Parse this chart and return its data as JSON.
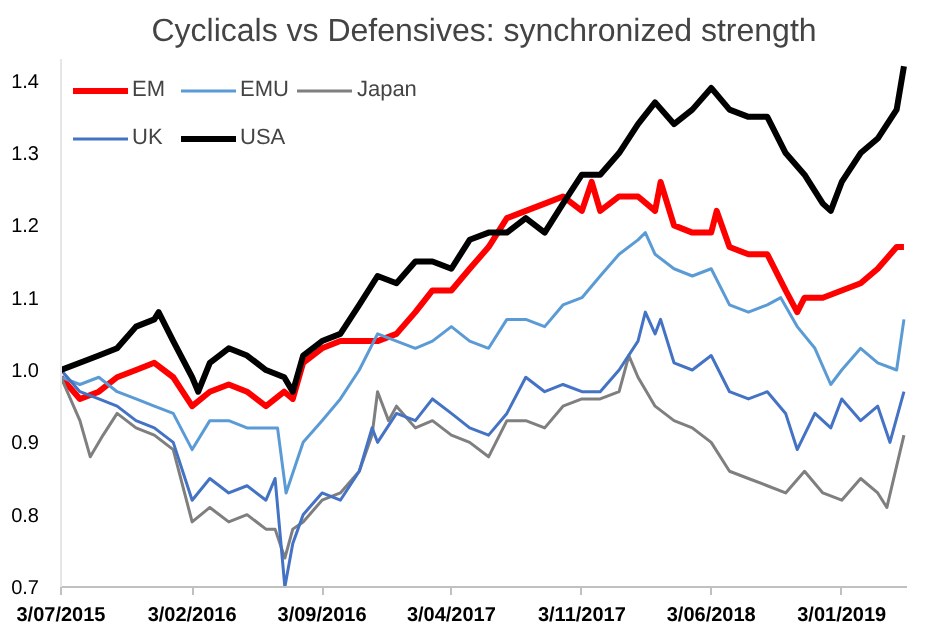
{
  "chart_data": {
    "type": "line",
    "title": "Cyclicals vs Defensives: synchronized strength",
    "xlim": [
      "2015-07-03",
      "2019-04-20"
    ],
    "ylim": [
      0.7,
      1.43
    ],
    "xticks": [
      {
        "value": "2015-07-03",
        "label": "3/07/2015"
      },
      {
        "value": "2016-02-03",
        "label": "3/02/2016"
      },
      {
        "value": "2016-09-03",
        "label": "3/09/2016"
      },
      {
        "value": "2017-04-03",
        "label": "3/04/2017"
      },
      {
        "value": "2017-11-03",
        "label": "3/11/2017"
      },
      {
        "value": "2018-06-03",
        "label": "3/06/2018"
      },
      {
        "value": "2019-01-03",
        "label": "3/01/2019"
      }
    ],
    "yticks": [
      0.7,
      0.8,
      0.9,
      {
        "value": 1.0,
        "label": "1.0"
      },
      1.1,
      1.2,
      1.3,
      1.4
    ],
    "grid": false,
    "legend": "top left",
    "line_style": "solid",
    "marker": "none",
    "series": [
      {
        "name": "EM",
        "color": "#ff0000",
        "x": [
          "2015-07-03",
          "2015-08-03",
          "2015-09-03",
          "2015-10-03",
          "2015-11-03",
          "2015-12-03",
          "2016-01-03",
          "2016-02-03",
          "2016-03-03",
          "2016-04-03",
          "2016-05-03",
          "2016-06-03",
          "2016-07-03",
          "2016-07-17",
          "2016-08-03",
          "2016-09-03",
          "2016-10-03",
          "2016-11-03",
          "2016-12-03",
          "2017-01-03",
          "2017-02-03",
          "2017-03-03",
          "2017-04-03",
          "2017-05-03",
          "2017-06-03",
          "2017-07-03",
          "2017-08-03",
          "2017-09-03",
          "2017-10-03",
          "2017-11-03",
          "2017-11-19",
          "2017-12-03",
          "2018-01-03",
          "2018-02-03",
          "2018-03-03",
          "2018-03-12",
          "2018-04-03",
          "2018-05-03",
          "2018-06-03",
          "2018-06-12",
          "2018-07-03",
          "2018-08-03",
          "2018-09-03",
          "2018-10-03",
          "2018-10-22",
          "2018-11-03",
          "2018-12-03",
          "2019-01-03",
          "2019-02-03",
          "2019-03-03",
          "2019-04-03",
          "2019-04-15"
        ],
        "values": [
          0.99,
          0.96,
          0.97,
          0.99,
          1.0,
          1.01,
          0.99,
          0.95,
          0.97,
          0.98,
          0.97,
          0.95,
          0.97,
          0.96,
          1.01,
          1.03,
          1.04,
          1.04,
          1.04,
          1.05,
          1.08,
          1.11,
          1.11,
          1.14,
          1.17,
          1.21,
          1.22,
          1.23,
          1.24,
          1.22,
          1.26,
          1.22,
          1.24,
          1.24,
          1.22,
          1.26,
          1.2,
          1.19,
          1.19,
          1.22,
          1.17,
          1.16,
          1.16,
          1.11,
          1.08,
          1.1,
          1.1,
          1.11,
          1.12,
          1.14,
          1.17,
          1.17
        ]
      },
      {
        "name": "EMU",
        "color": "#5b9bd5",
        "x": [
          "2015-07-03",
          "2015-08-03",
          "2015-09-03",
          "2015-10-03",
          "2015-11-03",
          "2015-12-03",
          "2016-01-03",
          "2016-02-03",
          "2016-03-03",
          "2016-04-03",
          "2016-05-03",
          "2016-06-03",
          "2016-06-22",
          "2016-07-06",
          "2016-08-03",
          "2016-09-03",
          "2016-10-03",
          "2016-11-03",
          "2016-12-03",
          "2017-01-03",
          "2017-02-03",
          "2017-03-03",
          "2017-04-03",
          "2017-05-03",
          "2017-06-03",
          "2017-07-03",
          "2017-08-03",
          "2017-09-03",
          "2017-10-03",
          "2017-11-03",
          "2017-12-03",
          "2018-01-03",
          "2018-02-03",
          "2018-02-15",
          "2018-03-03",
          "2018-04-03",
          "2018-05-03",
          "2018-06-03",
          "2018-07-03",
          "2018-08-03",
          "2018-09-03",
          "2018-09-25",
          "2018-10-22",
          "2018-11-20",
          "2018-12-16",
          "2019-01-03",
          "2019-02-03",
          "2019-03-03",
          "2019-04-03",
          "2019-04-15"
        ],
        "values": [
          0.99,
          0.98,
          0.99,
          0.97,
          0.96,
          0.95,
          0.94,
          0.89,
          0.93,
          0.93,
          0.92,
          0.92,
          0.92,
          0.83,
          0.9,
          0.93,
          0.96,
          1.0,
          1.05,
          1.04,
          1.03,
          1.04,
          1.06,
          1.04,
          1.03,
          1.07,
          1.07,
          1.06,
          1.09,
          1.1,
          1.13,
          1.16,
          1.18,
          1.19,
          1.16,
          1.14,
          1.13,
          1.14,
          1.09,
          1.08,
          1.09,
          1.1,
          1.06,
          1.03,
          0.98,
          1.0,
          1.03,
          1.01,
          1.0,
          1.07
        ]
      },
      {
        "name": "Japan",
        "color": "#7f7f7f",
        "x": [
          "2015-07-03",
          "2015-08-03",
          "2015-08-20",
          "2015-09-10",
          "2015-10-03",
          "2015-11-03",
          "2015-12-03",
          "2016-01-03",
          "2016-02-03",
          "2016-03-03",
          "2016-04-03",
          "2016-05-03",
          "2016-06-03",
          "2016-06-18",
          "2016-07-04",
          "2016-07-17",
          "2016-08-03",
          "2016-09-03",
          "2016-10-03",
          "2016-11-03",
          "2016-11-24",
          "2016-12-03",
          "2016-12-21",
          "2017-01-03",
          "2017-02-03",
          "2017-03-03",
          "2017-04-03",
          "2017-05-03",
          "2017-06-03",
          "2017-07-03",
          "2017-08-03",
          "2017-09-03",
          "2017-10-03",
          "2017-11-03",
          "2017-12-03",
          "2018-01-03",
          "2018-01-19",
          "2018-02-03",
          "2018-03-03",
          "2018-04-03",
          "2018-05-03",
          "2018-06-03",
          "2018-07-03",
          "2018-08-03",
          "2018-09-03",
          "2018-10-03",
          "2018-11-03",
          "2018-12-03",
          "2019-01-03",
          "2019-02-03",
          "2019-03-03",
          "2019-03-18",
          "2019-04-15"
        ],
        "values": [
          0.99,
          0.93,
          0.88,
          0.91,
          0.94,
          0.92,
          0.91,
          0.89,
          0.79,
          0.81,
          0.79,
          0.8,
          0.78,
          0.78,
          0.74,
          0.78,
          0.79,
          0.82,
          0.83,
          0.86,
          0.91,
          0.97,
          0.93,
          0.95,
          0.92,
          0.93,
          0.91,
          0.9,
          0.88,
          0.93,
          0.93,
          0.92,
          0.95,
          0.96,
          0.96,
          0.97,
          1.02,
          0.99,
          0.95,
          0.93,
          0.92,
          0.9,
          0.86,
          0.85,
          0.84,
          0.83,
          0.86,
          0.83,
          0.82,
          0.85,
          0.83,
          0.81,
          0.91
        ]
      },
      {
        "name": "UK",
        "color": "#4472c4",
        "x": [
          "2015-07-03",
          "2015-08-03",
          "2015-09-03",
          "2015-10-03",
          "2015-11-03",
          "2015-12-03",
          "2016-01-03",
          "2016-02-03",
          "2016-03-03",
          "2016-04-03",
          "2016-05-03",
          "2016-06-03",
          "2016-06-18",
          "2016-07-04",
          "2016-07-17",
          "2016-08-03",
          "2016-09-03",
          "2016-10-03",
          "2016-11-03",
          "2016-11-24",
          "2016-12-03",
          "2017-01-03",
          "2017-02-03",
          "2017-03-03",
          "2017-04-03",
          "2017-05-03",
          "2017-06-03",
          "2017-07-03",
          "2017-08-03",
          "2017-09-03",
          "2017-10-03",
          "2017-11-03",
          "2017-12-03",
          "2018-01-03",
          "2018-02-03",
          "2018-02-15",
          "2018-03-03",
          "2018-03-12",
          "2018-04-03",
          "2018-05-03",
          "2018-06-03",
          "2018-07-03",
          "2018-08-03",
          "2018-09-03",
          "2018-10-03",
          "2018-10-22",
          "2018-11-20",
          "2018-12-16",
          "2019-01-03",
          "2019-02-03",
          "2019-03-03",
          "2019-03-23",
          "2019-04-15"
        ],
        "values": [
          1.0,
          0.97,
          0.96,
          0.95,
          0.93,
          0.92,
          0.9,
          0.82,
          0.85,
          0.83,
          0.84,
          0.82,
          0.85,
          0.7,
          0.76,
          0.8,
          0.83,
          0.82,
          0.86,
          0.92,
          0.9,
          0.94,
          0.93,
          0.96,
          0.94,
          0.92,
          0.91,
          0.94,
          0.99,
          0.97,
          0.98,
          0.97,
          0.97,
          1.0,
          1.04,
          1.08,
          1.05,
          1.07,
          1.01,
          1.0,
          1.02,
          0.97,
          0.96,
          0.97,
          0.94,
          0.89,
          0.94,
          0.92,
          0.96,
          0.93,
          0.95,
          0.9,
          0.97
        ]
      },
      {
        "name": "USA",
        "color": "#000000",
        "x": [
          "2015-07-03",
          "2015-08-03",
          "2015-09-03",
          "2015-10-03",
          "2015-11-03",
          "2015-12-03",
          "2015-12-10",
          "2016-01-03",
          "2016-02-03",
          "2016-02-13",
          "2016-03-03",
          "2016-04-03",
          "2016-05-03",
          "2016-06-03",
          "2016-07-03",
          "2016-07-17",
          "2016-08-03",
          "2016-09-03",
          "2016-10-03",
          "2016-11-03",
          "2016-12-03",
          "2017-01-03",
          "2017-02-03",
          "2017-03-03",
          "2017-04-03",
          "2017-05-03",
          "2017-06-03",
          "2017-07-03",
          "2017-08-03",
          "2017-09-03",
          "2017-10-03",
          "2017-11-03",
          "2017-12-03",
          "2018-01-03",
          "2018-02-03",
          "2018-03-03",
          "2018-04-03",
          "2018-05-03",
          "2018-06-03",
          "2018-07-03",
          "2018-08-03",
          "2018-09-03",
          "2018-10-03",
          "2018-11-03",
          "2018-12-03",
          "2018-12-16",
          "2019-01-03",
          "2019-02-03",
          "2019-03-03",
          "2019-04-03",
          "2019-04-15"
        ],
        "values": [
          1.0,
          1.01,
          1.02,
          1.03,
          1.06,
          1.07,
          1.08,
          1.04,
          0.99,
          0.97,
          1.01,
          1.03,
          1.02,
          1.0,
          0.99,
          0.97,
          1.02,
          1.04,
          1.05,
          1.09,
          1.13,
          1.12,
          1.15,
          1.15,
          1.14,
          1.18,
          1.19,
          1.19,
          1.21,
          1.19,
          1.23,
          1.27,
          1.27,
          1.3,
          1.34,
          1.37,
          1.34,
          1.36,
          1.39,
          1.36,
          1.35,
          1.35,
          1.3,
          1.27,
          1.23,
          1.22,
          1.26,
          1.3,
          1.32,
          1.36,
          1.42
        ]
      }
    ]
  }
}
